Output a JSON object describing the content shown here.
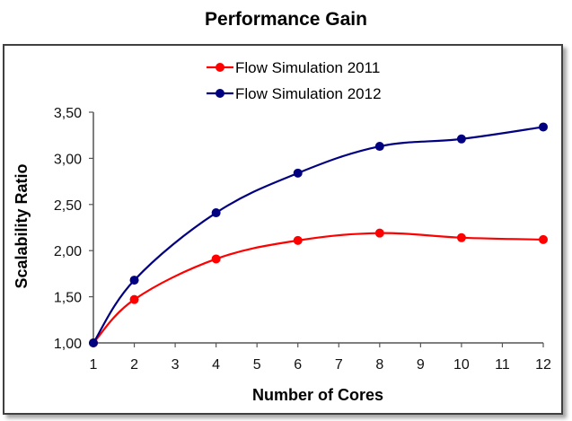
{
  "chart_data": {
    "type": "line",
    "title": "Performance Gain",
    "xlabel": "Number of Cores",
    "ylabel": "Scalability Ratio",
    "x_ticks": [
      "1",
      "2",
      "3",
      "4",
      "5",
      "6",
      "7",
      "8",
      "9",
      "10",
      "11",
      "12"
    ],
    "y_ticks": [
      "1,00",
      "1,50",
      "2,00",
      "2,50",
      "3,00",
      "3,50"
    ],
    "xlim": [
      1,
      12
    ],
    "ylim": [
      1.0,
      3.5
    ],
    "grid": false,
    "legend_position": "top-center",
    "series": [
      {
        "name": "Flow Simulation 2011",
        "color": "#ff0000",
        "x": [
          1,
          2,
          4,
          6,
          8,
          10,
          12
        ],
        "values": [
          1.0,
          1.47,
          1.91,
          2.11,
          2.19,
          2.14,
          2.12
        ]
      },
      {
        "name": "Flow Simulation 2012",
        "color": "#000080",
        "x": [
          1,
          2,
          4,
          6,
          8,
          10,
          12
        ],
        "values": [
          1.0,
          1.68,
          2.41,
          2.84,
          3.13,
          3.21,
          3.34
        ]
      }
    ]
  }
}
